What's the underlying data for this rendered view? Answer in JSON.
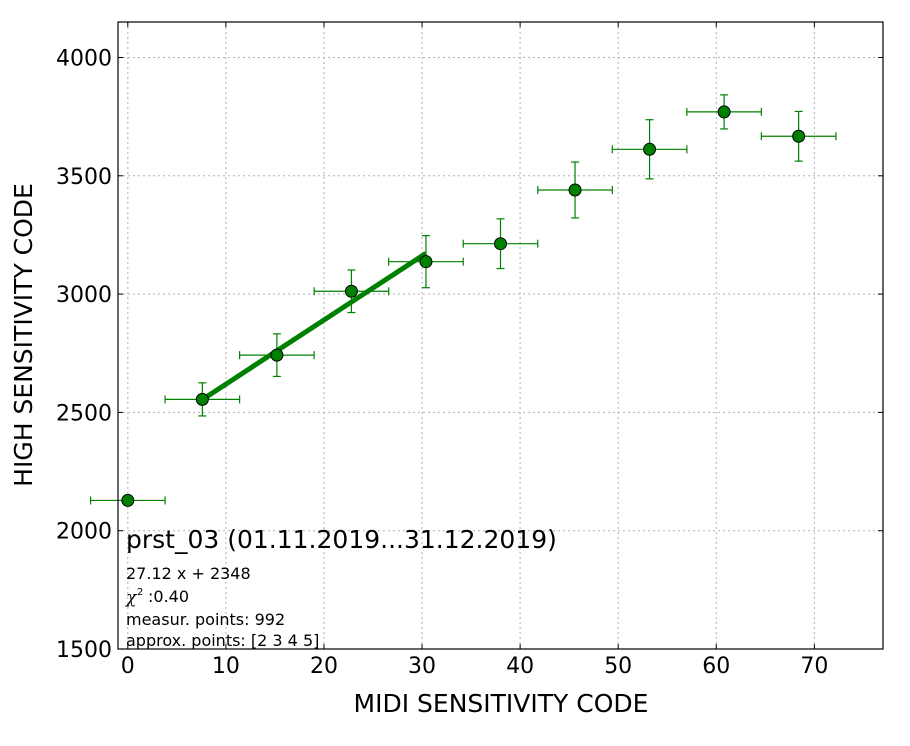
{
  "chart_data": {
    "type": "scatter",
    "xlabel": "MIDI SENSITIVITY CODE",
    "ylabel": "HIGH SENSITIVITY CODE",
    "xlim": [
      -1,
      77
    ],
    "ylim": [
      1500,
      4150
    ],
    "xticks": [
      0,
      10,
      20,
      30,
      40,
      50,
      60,
      70
    ],
    "yticks": [
      1500,
      2000,
      2500,
      3000,
      3500,
      4000
    ],
    "grid": true,
    "color": "#008000",
    "points": [
      {
        "x": 0.0,
        "y": 2128,
        "xerr": 3.8,
        "yerr": 0
      },
      {
        "x": 7.6,
        "y": 2555,
        "xerr": 3.8,
        "yerr": 70
      },
      {
        "x": 15.2,
        "y": 2742,
        "xerr": 3.8,
        "yerr": 90
      },
      {
        "x": 22.8,
        "y": 3012,
        "xerr": 3.8,
        "yerr": 90
      },
      {
        "x": 30.4,
        "y": 3137,
        "xerr": 3.8,
        "yerr": 110
      },
      {
        "x": 38.0,
        "y": 3213,
        "xerr": 3.8,
        "yerr": 105
      },
      {
        "x": 45.6,
        "y": 3440,
        "xerr": 3.8,
        "yerr": 118
      },
      {
        "x": 53.2,
        "y": 3612,
        "xerr": 3.8,
        "yerr": 125
      },
      {
        "x": 60.8,
        "y": 3770,
        "xerr": 3.8,
        "yerr": 72
      },
      {
        "x": 68.4,
        "y": 3667,
        "xerr": 3.8,
        "yerr": 105
      }
    ],
    "fit": {
      "slope": 27.12,
      "intercept": 2348,
      "x_range": [
        7.6,
        30.4
      ]
    },
    "annotation": {
      "title": "prst_03 (01.11.2019...31.12.2019)",
      "lines": [
        "27.12 x + 2348",
        ":0.40",
        "measur. points: 992",
        "approx. points: [2 3 4 5]"
      ],
      "chi_symbol": "χ",
      "chi_exp": "2"
    }
  }
}
